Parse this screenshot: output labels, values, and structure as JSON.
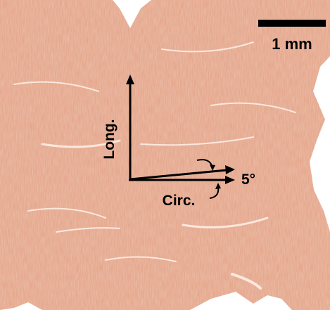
{
  "scale_bar": {
    "label": "1 mm"
  },
  "axes": {
    "longitudinal": "Long.",
    "circumferential": "Circ.",
    "angle": "5°"
  }
}
